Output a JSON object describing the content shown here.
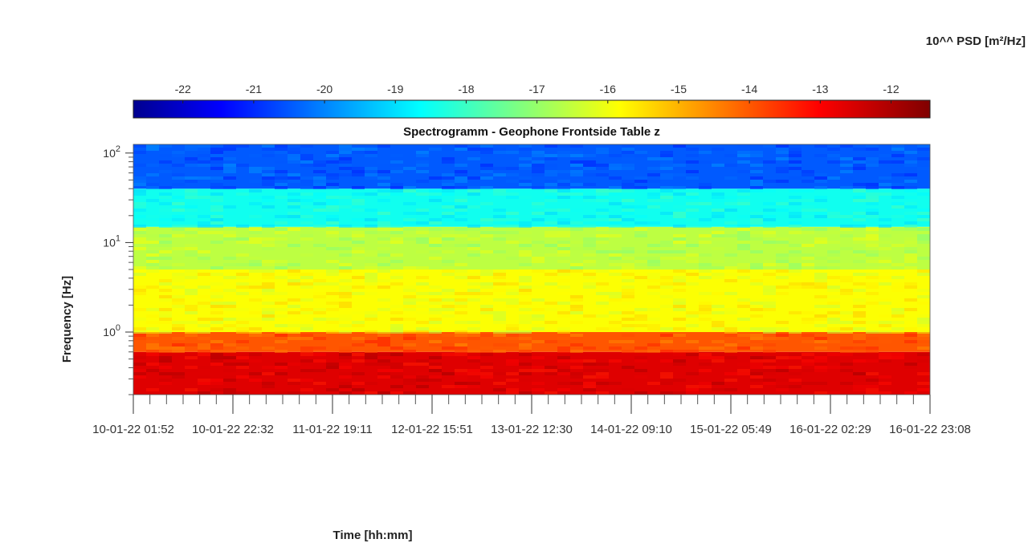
{
  "chart_data": {
    "type": "heatmap",
    "title": "Spectrogramm - Geophone Frontside Table z",
    "xlabel": "Time [hh:mm]",
    "ylabel": "Frequency [Hz]",
    "colorbar": {
      "label": "10^^ PSD [m²/Hz]",
      "ticks": [
        "-22",
        "-21",
        "-20",
        "-19",
        "-18",
        "-17",
        "-16",
        "-15",
        "-14",
        "-13",
        "-12"
      ],
      "range": [
        -22.7,
        -11.45
      ],
      "colormap": "jet"
    },
    "y_scale": "log",
    "y_range_hz": [
      0.2,
      125
    ],
    "y_tick_labels": [
      {
        "base": "10",
        "exp": "0"
      },
      {
        "base": "10",
        "exp": "1"
      },
      {
        "base": "10",
        "exp": "2"
      }
    ],
    "x_tick_labels": [
      "10-01-22 01:52",
      "10-01-22 22:32",
      "11-01-22 19:11",
      "12-01-22 15:51",
      "13-01-22 12:30",
      "14-01-22 09:10",
      "15-01-22 05:49",
      "16-01-22 02:29",
      "16-01-22 23:08"
    ],
    "x_range": [
      "10-01-22 01:52",
      "16-01-22 23:08"
    ],
    "frequency_bands": [
      {
        "f_min": 0.2,
        "f_max": 0.6,
        "log_psd": -12.5
      },
      {
        "f_min": 0.6,
        "f_max": 1.0,
        "log_psd": -13.8
      },
      {
        "f_min": 1.0,
        "f_max": 5.0,
        "log_psd": -15.7
      },
      {
        "f_min": 5.0,
        "f_max": 15.0,
        "log_psd": -16.4
      },
      {
        "f_min": 15.0,
        "f_max": 40.0,
        "log_psd": -18.3
      },
      {
        "f_min": 40.0,
        "f_max": 125.0,
        "log_psd": -20.3
      }
    ]
  }
}
